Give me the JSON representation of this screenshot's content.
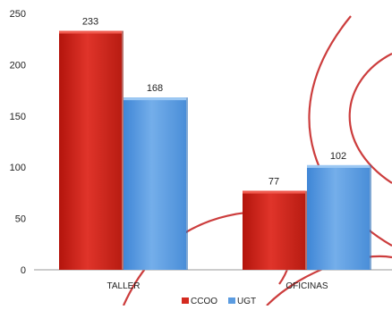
{
  "chart_data": {
    "type": "bar",
    "categories": [
      "TALLER",
      "OFICINAS"
    ],
    "series": [
      {
        "name": "CCOO",
        "values": [
          233,
          77
        ],
        "color": "#d42a1f"
      },
      {
        "name": "UGT",
        "values": [
          168,
          102
        ],
        "color": "#5b9be0"
      }
    ],
    "ylim": [
      0,
      250
    ],
    "yticks": [
      0,
      50,
      100,
      150,
      200,
      250
    ],
    "grid": false,
    "legend_position": "bottom",
    "data_labels": true
  },
  "decoration": {
    "swoosh_color": "#c62828"
  }
}
